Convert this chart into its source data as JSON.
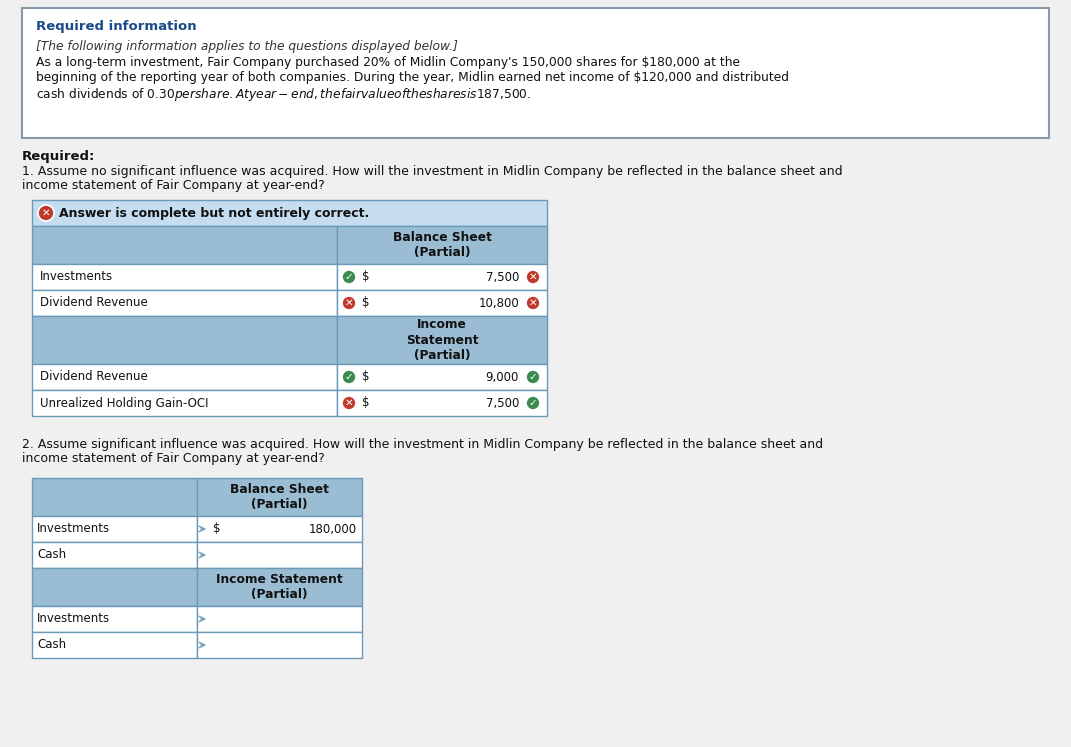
{
  "bg_color": "#f0f0f0",
  "white": "#ffffff",
  "header_bg": "#9bbdd4",
  "border_color": "#6a9ab8",
  "info_box_border": "#8899aa",
  "req_info_color": "#1a4a8a",
  "text_color": "#111111",
  "bold_color": "#111111",
  "answer_banner_bg": "#c5ddef",
  "answer_banner_text": "Answer is complete but not entirely correct.",
  "info_title": "Required information",
  "info_italic": "[The following information applies to the questions displayed below.]",
  "info_body1": "As a long-term investment, Fair Company purchased 20% of Midlin Company's 150,000 shares for $180,000 at the",
  "info_body2": "beginning of the reporting year of both companies. During the year, Midlin earned net income of $120,000 and distributed",
  "info_body3": "cash dividends of $0.30 per share. At year-end, the fair value of the shares is $187,500.",
  "required_label": "Required:",
  "q1_line1": "1. Assume no significant influence was acquired. How will the investment in Midlin Company be reflected in the balance sheet and",
  "q1_line2": "income statement of Fair Company at year-end?",
  "q2_line1": "2. Assume significant influence was acquired. How will the investment in Midlin Company be reflected in the balance sheet and",
  "q2_line2": "income statement of Fair Company at year-end?"
}
